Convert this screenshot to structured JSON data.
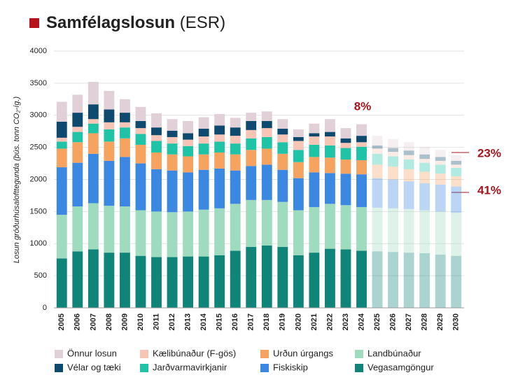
{
  "chart_data": {
    "type": "stacked-bar",
    "title": "Samfélagslosun",
    "subtitle": "(ESR)",
    "y_label": "Losun gróðurhúsalofttegunda (þús. tonn CO₂-íg.)",
    "categories": [
      "2005",
      "2006",
      "2007",
      "2008",
      "2009",
      "2010",
      "2011",
      "2012",
      "2013",
      "2014",
      "2015",
      "2016",
      "2017",
      "2018",
      "2019",
      "2020",
      "2021",
      "2022",
      "2023",
      "2024",
      "2025",
      "2026",
      "2027",
      "2028",
      "2029",
      "2030"
    ],
    "projected_from": "2025",
    "ylim": [
      0,
      4000
    ],
    "yticks": [
      0,
      500,
      1000,
      1500,
      2000,
      2500,
      3000,
      3500,
      4000
    ],
    "grid": true,
    "annotations": [
      "8%",
      "23%",
      "41%"
    ],
    "series": [
      {
        "name": "Vegasamgöngur",
        "color": "#0f857a",
        "values": [
          770,
          880,
          910,
          860,
          860,
          810,
          790,
          790,
          800,
          800,
          820,
          890,
          950,
          970,
          950,
          820,
          860,
          920,
          910,
          890,
          880,
          870,
          860,
          850,
          830,
          810
        ]
      },
      {
        "name": "Landbúnaður",
        "color": "#9fdbbf",
        "values": [
          680,
          700,
          720,
          730,
          720,
          710,
          710,
          700,
          700,
          730,
          730,
          730,
          730,
          710,
          700,
          700,
          710,
          700,
          690,
          680,
          680,
          680,
          680,
          670,
          670,
          670
        ]
      },
      {
        "name": "Fiskiskip",
        "color": "#3b88e2",
        "values": [
          740,
          680,
          770,
          700,
          770,
          730,
          660,
          650,
          610,
          620,
          620,
          520,
          530,
          550,
          500,
          500,
          540,
          480,
          490,
          510,
          460,
          450,
          430,
          420,
          420,
          410
        ]
      },
      {
        "name": "Urðun úrgangs",
        "color": "#f6a360",
        "values": [
          290,
          320,
          320,
          300,
          290,
          290,
          260,
          250,
          250,
          240,
          250,
          250,
          250,
          250,
          250,
          250,
          240,
          240,
          220,
          220,
          210,
          200,
          190,
          180,
          170,
          160
        ]
      },
      {
        "name": "Jarðvarmavirkjanir",
        "color": "#1fc4a6",
        "values": [
          110,
          160,
          150,
          190,
          170,
          170,
          180,
          170,
          160,
          170,
          170,
          170,
          180,
          180,
          180,
          190,
          190,
          190,
          180,
          210,
          170,
          160,
          150,
          140,
          140,
          130
        ]
      },
      {
        "name": "Kælibúnaður (F-gös)",
        "color": "#f7c5b5",
        "values": [
          60,
          80,
          70,
          110,
          80,
          90,
          90,
          100,
          100,
          110,
          110,
          120,
          130,
          140,
          120,
          140,
          130,
          140,
          80,
          70,
          80,
          70,
          70,
          60,
          60,
          50
        ]
      },
      {
        "name": "Vélar og tæki",
        "color": "#0e4a6f",
        "values": [
          250,
          220,
          230,
          200,
          150,
          110,
          120,
          100,
          100,
          120,
          140,
          130,
          140,
          110,
          90,
          60,
          50,
          70,
          70,
          100,
          50,
          60,
          70,
          70,
          60,
          60
        ]
      },
      {
        "name": "Önnur losun",
        "color": "#e1d0d7",
        "values": [
          310,
          280,
          350,
          290,
          210,
          220,
          220,
          180,
          190,
          180,
          180,
          150,
          130,
          150,
          150,
          120,
          150,
          200,
          160,
          180,
          150,
          140,
          130,
          120,
          110,
          90
        ]
      }
    ]
  }
}
